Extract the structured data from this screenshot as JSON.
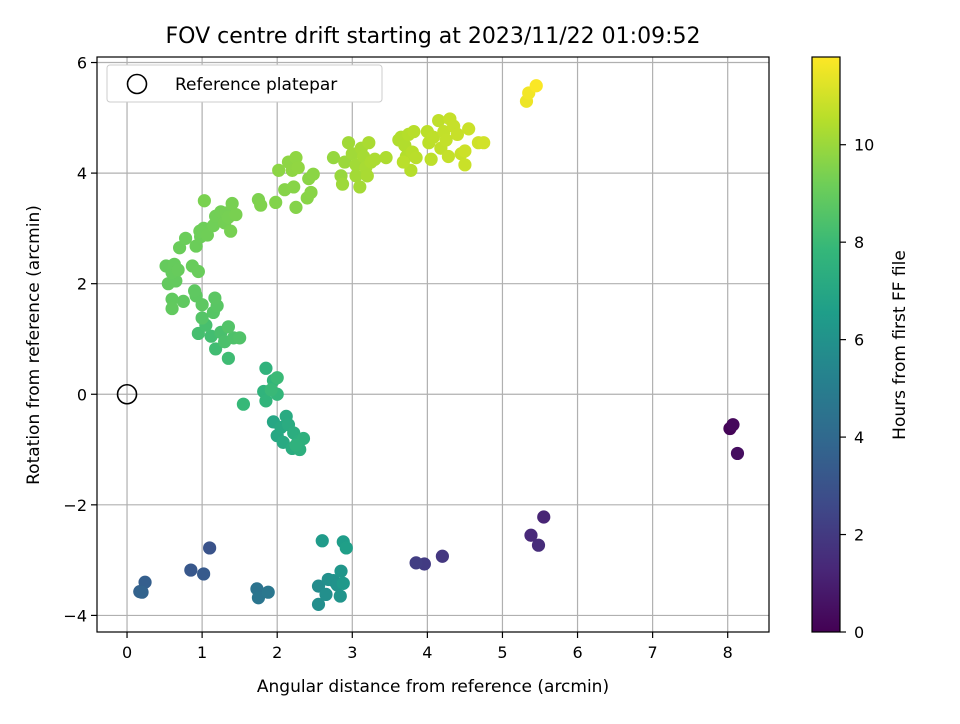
{
  "chart_data": {
    "type": "scatter",
    "title": "FOV centre drift starting at 2023/11/22 01:09:52",
    "xlabel": "Angular distance from reference (arcmin)",
    "ylabel": "Rotation from reference (arcmin)",
    "xlim": [
      -0.4,
      8.55
    ],
    "ylim": [
      -4.3,
      6.1
    ],
    "xticks": [
      0,
      1,
      2,
      3,
      4,
      5,
      6,
      7,
      8
    ],
    "yticks": [
      -4,
      -2,
      0,
      2,
      4,
      6
    ],
    "grid": true,
    "legend": {
      "placement": "top-left",
      "entries": [
        {
          "label": "Reference platepar",
          "marker": "open-circle"
        }
      ]
    },
    "reference_point": {
      "x": 0,
      "y": 0
    },
    "colorbar": {
      "label": "Hours from first FF file",
      "colormap": "viridis",
      "range": [
        0,
        11.8
      ],
      "ticks": [
        0,
        2,
        4,
        6,
        8,
        10
      ]
    },
    "colormap_stops": [
      "#440154",
      "#482878",
      "#3e4a89",
      "#31688e",
      "#26828e",
      "#1f9e89",
      "#35b779",
      "#6ece58",
      "#b5de2b",
      "#fde725"
    ],
    "points": [
      {
        "x": 8.03,
        "y": -0.62,
        "c": 0.1
      },
      {
        "x": 8.07,
        "y": -0.55,
        "c": 0.25
      },
      {
        "x": 8.13,
        "y": -1.07,
        "c": 0.4
      },
      {
        "x": 5.55,
        "y": -2.22,
        "c": 1.2
      },
      {
        "x": 5.38,
        "y": -2.55,
        "c": 1.35
      },
      {
        "x": 5.48,
        "y": -2.73,
        "c": 1.5
      },
      {
        "x": 4.2,
        "y": -2.93,
        "c": 1.9
      },
      {
        "x": 3.96,
        "y": -3.07,
        "c": 2.05
      },
      {
        "x": 3.85,
        "y": -3.05,
        "c": 2.15
      },
      {
        "x": 1.1,
        "y": -2.78,
        "c": 3.0
      },
      {
        "x": 0.85,
        "y": -3.18,
        "c": 3.2
      },
      {
        "x": 1.02,
        "y": -3.25,
        "c": 3.3
      },
      {
        "x": 0.24,
        "y": -3.4,
        "c": 3.55
      },
      {
        "x": 0.17,
        "y": -3.57,
        "c": 3.65
      },
      {
        "x": 0.2,
        "y": -3.58,
        "c": 3.7
      },
      {
        "x": 1.73,
        "y": -3.52,
        "c": 4.5
      },
      {
        "x": 1.75,
        "y": -3.68,
        "c": 4.6
      },
      {
        "x": 1.88,
        "y": -3.58,
        "c": 4.7
      },
      {
        "x": 2.55,
        "y": -3.47,
        "c": 5.7
      },
      {
        "x": 2.55,
        "y": -3.8,
        "c": 5.8
      },
      {
        "x": 2.65,
        "y": -3.62,
        "c": 5.85
      },
      {
        "x": 2.68,
        "y": -3.35,
        "c": 5.9
      },
      {
        "x": 2.75,
        "y": -3.37,
        "c": 6.0
      },
      {
        "x": 2.8,
        "y": -3.45,
        "c": 6.05
      },
      {
        "x": 2.84,
        "y": -3.65,
        "c": 6.1
      },
      {
        "x": 2.85,
        "y": -3.2,
        "c": 6.2
      },
      {
        "x": 2.88,
        "y": -3.42,
        "c": 6.3
      },
      {
        "x": 2.6,
        "y": -2.65,
        "c": 6.4
      },
      {
        "x": 2.88,
        "y": -2.67,
        "c": 6.5
      },
      {
        "x": 2.92,
        "y": -2.78,
        "c": 6.6
      },
      {
        "x": 1.95,
        "y": -0.5,
        "c": 7.0
      },
      {
        "x": 2.0,
        "y": -0.75,
        "c": 7.05
      },
      {
        "x": 2.05,
        "y": -0.6,
        "c": 7.1
      },
      {
        "x": 2.08,
        "y": -0.87,
        "c": 7.15
      },
      {
        "x": 2.12,
        "y": -0.4,
        "c": 7.2
      },
      {
        "x": 2.15,
        "y": -0.55,
        "c": 7.25
      },
      {
        "x": 2.2,
        "y": -0.98,
        "c": 7.3
      },
      {
        "x": 2.22,
        "y": -0.7,
        "c": 7.35
      },
      {
        "x": 2.28,
        "y": -0.85,
        "c": 7.4
      },
      {
        "x": 2.3,
        "y": -1.0,
        "c": 7.45
      },
      {
        "x": 2.35,
        "y": -0.8,
        "c": 7.5
      },
      {
        "x": 2.25,
        "y": -0.92,
        "c": 7.55
      },
      {
        "x": 1.85,
        "y": 0.47,
        "c": 7.6
      },
      {
        "x": 1.82,
        "y": 0.05,
        "c": 7.65
      },
      {
        "x": 1.85,
        "y": -0.12,
        "c": 7.7
      },
      {
        "x": 1.95,
        "y": 0.25,
        "c": 7.75
      },
      {
        "x": 2.0,
        "y": 0.0,
        "c": 7.8
      },
      {
        "x": 1.55,
        "y": -0.18,
        "c": 7.9
      },
      {
        "x": 1.92,
        "y": 0.08,
        "c": 7.95
      },
      {
        "x": 2.0,
        "y": 0.3,
        "c": 8.0
      },
      {
        "x": 1.35,
        "y": 0.65,
        "c": 8.1
      },
      {
        "x": 1.18,
        "y": 0.82,
        "c": 8.15
      },
      {
        "x": 1.12,
        "y": 1.05,
        "c": 8.2
      },
      {
        "x": 0.95,
        "y": 1.1,
        "c": 8.25
      },
      {
        "x": 1.05,
        "y": 1.25,
        "c": 8.3
      },
      {
        "x": 1.25,
        "y": 1.12,
        "c": 8.35
      },
      {
        "x": 1.3,
        "y": 0.95,
        "c": 8.4
      },
      {
        "x": 1.42,
        "y": 1.02,
        "c": 8.45
      },
      {
        "x": 1.5,
        "y": 1.02,
        "c": 8.5
      },
      {
        "x": 1.35,
        "y": 1.22,
        "c": 8.55
      },
      {
        "x": 1.0,
        "y": 1.38,
        "c": 8.6
      },
      {
        "x": 1.15,
        "y": 1.48,
        "c": 8.65
      },
      {
        "x": 1.2,
        "y": 1.6,
        "c": 8.7
      },
      {
        "x": 1.17,
        "y": 1.74,
        "c": 8.75
      },
      {
        "x": 1.0,
        "y": 1.62,
        "c": 8.8
      },
      {
        "x": 0.92,
        "y": 1.78,
        "c": 8.82
      },
      {
        "x": 0.9,
        "y": 1.87,
        "c": 8.84
      },
      {
        "x": 0.75,
        "y": 1.68,
        "c": 8.86
      },
      {
        "x": 0.6,
        "y": 1.72,
        "c": 8.88
      },
      {
        "x": 0.6,
        "y": 1.55,
        "c": 8.9
      },
      {
        "x": 0.55,
        "y": 2.0,
        "c": 8.92
      },
      {
        "x": 0.65,
        "y": 2.05,
        "c": 8.94
      },
      {
        "x": 0.52,
        "y": 2.32,
        "c": 8.96
      },
      {
        "x": 0.6,
        "y": 2.2,
        "c": 8.98
      },
      {
        "x": 0.63,
        "y": 2.35,
        "c": 9.0
      },
      {
        "x": 0.68,
        "y": 2.25,
        "c": 9.02
      },
      {
        "x": 0.87,
        "y": 2.32,
        "c": 9.04
      },
      {
        "x": 0.95,
        "y": 2.22,
        "c": 9.06
      },
      {
        "x": 0.7,
        "y": 2.65,
        "c": 9.08
      },
      {
        "x": 0.78,
        "y": 2.82,
        "c": 9.1
      },
      {
        "x": 0.92,
        "y": 2.68,
        "c": 9.12
      },
      {
        "x": 0.98,
        "y": 2.85,
        "c": 9.14
      },
      {
        "x": 1.02,
        "y": 3.0,
        "c": 9.16
      },
      {
        "x": 0.97,
        "y": 2.95,
        "c": 9.18
      },
      {
        "x": 1.07,
        "y": 2.88,
        "c": 9.2
      },
      {
        "x": 1.15,
        "y": 3.05,
        "c": 9.22
      },
      {
        "x": 1.18,
        "y": 3.22,
        "c": 9.24
      },
      {
        "x": 1.25,
        "y": 3.3,
        "c": 9.26
      },
      {
        "x": 1.3,
        "y": 3.1,
        "c": 9.28
      },
      {
        "x": 1.32,
        "y": 3.28,
        "c": 9.3
      },
      {
        "x": 1.35,
        "y": 3.2,
        "c": 9.32
      },
      {
        "x": 1.38,
        "y": 2.95,
        "c": 9.34
      },
      {
        "x": 1.4,
        "y": 3.45,
        "c": 9.36
      },
      {
        "x": 1.45,
        "y": 3.25,
        "c": 9.38
      },
      {
        "x": 1.03,
        "y": 3.5,
        "c": 9.4
      },
      {
        "x": 1.75,
        "y": 3.52,
        "c": 9.45
      },
      {
        "x": 1.78,
        "y": 3.42,
        "c": 9.5
      },
      {
        "x": 1.98,
        "y": 3.47,
        "c": 9.55
      },
      {
        "x": 2.25,
        "y": 3.38,
        "c": 9.6
      },
      {
        "x": 2.1,
        "y": 3.7,
        "c": 9.62
      },
      {
        "x": 2.22,
        "y": 3.75,
        "c": 9.64
      },
      {
        "x": 2.4,
        "y": 3.55,
        "c": 9.66
      },
      {
        "x": 2.45,
        "y": 3.65,
        "c": 9.68
      },
      {
        "x": 2.42,
        "y": 3.9,
        "c": 9.7
      },
      {
        "x": 2.48,
        "y": 3.98,
        "c": 9.72
      },
      {
        "x": 2.02,
        "y": 4.05,
        "c": 9.74
      },
      {
        "x": 2.15,
        "y": 4.2,
        "c": 9.76
      },
      {
        "x": 2.2,
        "y": 4.05,
        "c": 9.78
      },
      {
        "x": 2.25,
        "y": 4.28,
        "c": 9.8
      },
      {
        "x": 2.28,
        "y": 4.1,
        "c": 9.82
      },
      {
        "x": 2.75,
        "y": 4.28,
        "c": 9.9
      },
      {
        "x": 2.85,
        "y": 3.95,
        "c": 9.95
      },
      {
        "x": 2.9,
        "y": 4.2,
        "c": 10.0
      },
      {
        "x": 2.87,
        "y": 3.8,
        "c": 10.05
      },
      {
        "x": 2.95,
        "y": 4.55,
        "c": 10.1
      },
      {
        "x": 3.0,
        "y": 4.35,
        "c": 10.12
      },
      {
        "x": 3.05,
        "y": 4.15,
        "c": 10.14
      },
      {
        "x": 3.05,
        "y": 3.95,
        "c": 10.16
      },
      {
        "x": 3.1,
        "y": 3.75,
        "c": 10.18
      },
      {
        "x": 3.12,
        "y": 4.45,
        "c": 10.2
      },
      {
        "x": 3.15,
        "y": 4.3,
        "c": 10.22
      },
      {
        "x": 3.18,
        "y": 4.1,
        "c": 10.24
      },
      {
        "x": 3.2,
        "y": 3.95,
        "c": 10.26
      },
      {
        "x": 3.22,
        "y": 4.55,
        "c": 10.28
      },
      {
        "x": 3.25,
        "y": 4.2,
        "c": 10.3
      },
      {
        "x": 3.3,
        "y": 4.25,
        "c": 10.32
      },
      {
        "x": 3.45,
        "y": 4.28,
        "c": 10.34
      },
      {
        "x": 3.62,
        "y": 4.6,
        "c": 10.4
      },
      {
        "x": 3.65,
        "y": 4.65,
        "c": 10.42
      },
      {
        "x": 3.7,
        "y": 4.5,
        "c": 10.44
      },
      {
        "x": 3.72,
        "y": 4.3,
        "c": 10.46
      },
      {
        "x": 3.75,
        "y": 4.7,
        "c": 10.48
      },
      {
        "x": 3.78,
        "y": 4.05,
        "c": 10.5
      },
      {
        "x": 3.8,
        "y": 4.38,
        "c": 10.52
      },
      {
        "x": 3.82,
        "y": 4.75,
        "c": 10.54
      },
      {
        "x": 3.85,
        "y": 4.28,
        "c": 10.56
      },
      {
        "x": 3.68,
        "y": 4.2,
        "c": 10.58
      },
      {
        "x": 4.0,
        "y": 4.75,
        "c": 10.6
      },
      {
        "x": 4.02,
        "y": 4.55,
        "c": 10.62
      },
      {
        "x": 4.05,
        "y": 4.25,
        "c": 10.64
      },
      {
        "x": 4.08,
        "y": 4.65,
        "c": 10.66
      },
      {
        "x": 4.15,
        "y": 4.95,
        "c": 10.68
      },
      {
        "x": 4.18,
        "y": 4.45,
        "c": 10.7
      },
      {
        "x": 4.22,
        "y": 4.75,
        "c": 10.72
      },
      {
        "x": 4.25,
        "y": 4.6,
        "c": 10.74
      },
      {
        "x": 4.28,
        "y": 4.3,
        "c": 10.76
      },
      {
        "x": 4.3,
        "y": 4.98,
        "c": 10.78
      },
      {
        "x": 4.35,
        "y": 4.85,
        "c": 10.8
      },
      {
        "x": 4.4,
        "y": 4.7,
        "c": 10.82
      },
      {
        "x": 4.45,
        "y": 4.35,
        "c": 10.84
      },
      {
        "x": 4.5,
        "y": 4.15,
        "c": 10.86
      },
      {
        "x": 4.55,
        "y": 4.8,
        "c": 10.88
      },
      {
        "x": 4.5,
        "y": 4.4,
        "c": 10.9
      },
      {
        "x": 4.68,
        "y": 4.55,
        "c": 10.95
      },
      {
        "x": 4.75,
        "y": 4.55,
        "c": 11.0
      },
      {
        "x": 5.32,
        "y": 5.3,
        "c": 11.5
      },
      {
        "x": 5.35,
        "y": 5.45,
        "c": 11.6
      },
      {
        "x": 5.45,
        "y": 5.58,
        "c": 11.75
      }
    ]
  }
}
